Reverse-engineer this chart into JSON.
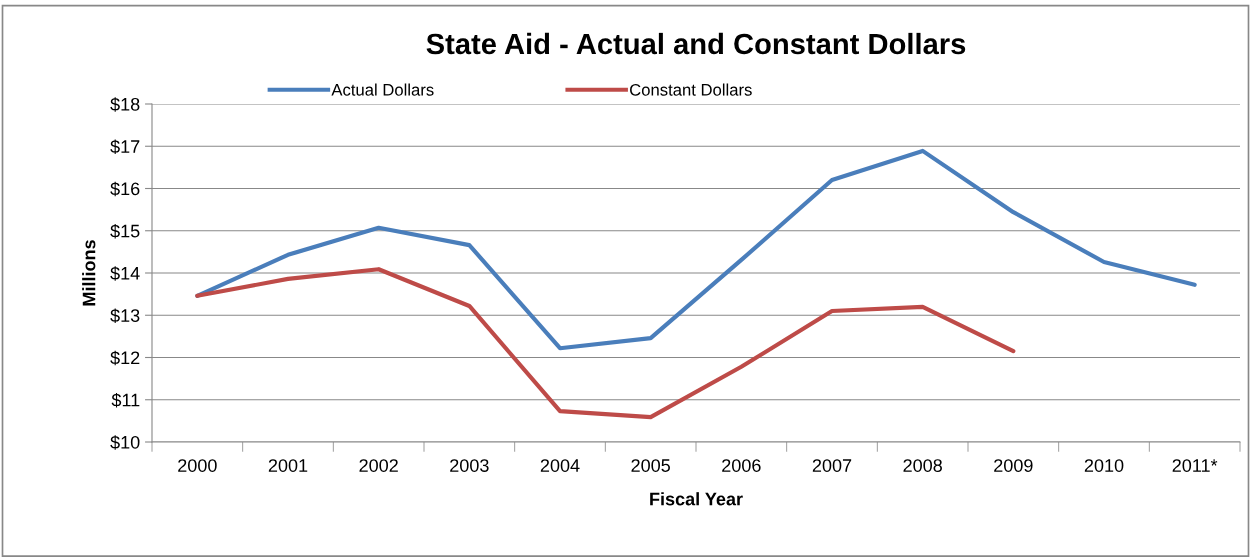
{
  "chart_data": {
    "type": "line",
    "title": "State Aid - Actual and Constant Dollars",
    "xlabel": "Fiscal Year",
    "ylabel": "Millions",
    "categories": [
      "2000",
      "2001",
      "2002",
      "2003",
      "2004",
      "2005",
      "2006",
      "2007",
      "2008",
      "2009",
      "2010",
      "2011*"
    ],
    "series": [
      {
        "name": "Actual Dollars",
        "color": "#4a7ebb",
        "values": [
          13.46,
          14.43,
          15.07,
          14.66,
          12.22,
          12.46,
          14.31,
          16.2,
          16.89,
          15.44,
          14.26,
          13.72
        ]
      },
      {
        "name": "Constant Dollars",
        "color": "#be4b48",
        "values": [
          13.46,
          13.86,
          14.09,
          13.22,
          10.73,
          10.59,
          11.78,
          13.1,
          13.2,
          12.15,
          null,
          null
        ]
      }
    ],
    "ylim": [
      10,
      18
    ],
    "yticks": [
      {
        "value": 10,
        "label": "$10"
      },
      {
        "value": 11,
        "label": "$11"
      },
      {
        "value": 12,
        "label": "$12"
      },
      {
        "value": 13,
        "label": "$13"
      },
      {
        "value": 14,
        "label": "$14"
      },
      {
        "value": 15,
        "label": "$15"
      },
      {
        "value": 16,
        "label": "$16"
      },
      {
        "value": 17,
        "label": "$17"
      },
      {
        "value": 18,
        "label": "$18"
      }
    ],
    "grid": "y",
    "legend": "top",
    "marker": "none",
    "line_style": "solid"
  }
}
